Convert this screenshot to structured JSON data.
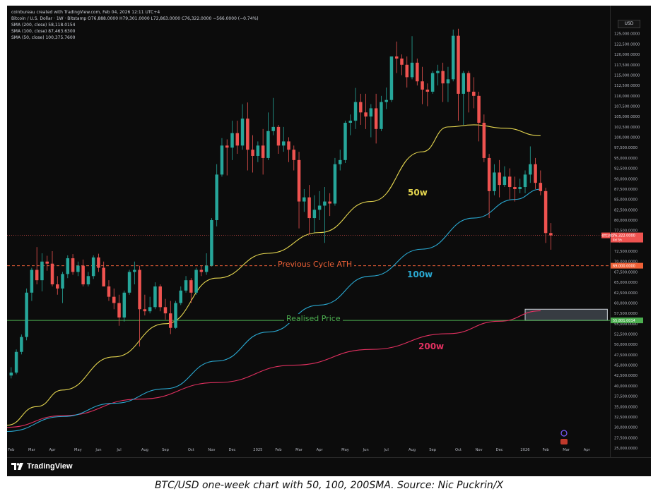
{
  "header": {
    "watermark": "coinbureau created with TradingView.com, Feb 04, 2026 12:11 UTC+4",
    "symbol_line": "Bitcoin / U.S. Dollar · 1W · Bitstamp  O76,888.0000  H79,301.0000  L72,863.0000  C76,322.0000  −566.0000 (−0.74%)",
    "sma200_line": "SMA (200, close)  58,118.0154",
    "sma100_line": "SMA (100, close)  87,463.6300",
    "sma50_line": "SMA (50, close)  100,375.7600"
  },
  "toolbar": {
    "currency": "USD"
  },
  "annotations": {
    "label_50w": "50w",
    "label_100w": "100w",
    "label_200w": "200w",
    "prev_ath_label": "Previous Cycle ATH",
    "realised_label": "Realised Price"
  },
  "branding": {
    "logo_text": "TradingView"
  },
  "caption": "BTC/USD one-week chart with 50, 100, 200SMA. Source: Nic Puckrin/X",
  "colors": {
    "background": "#0c0c0c",
    "up": "#26a69a",
    "down": "#ef5350",
    "sma50": "#e5d64f",
    "sma100": "#2aa9d2",
    "sma200": "#e23060",
    "prev_ath": "#ef6137",
    "realised": "#4caf50",
    "axis_text": "#b2b5be"
  },
  "chart_data": {
    "type": "candlestick",
    "title": "Bitcoin / U.S. Dollar · 1W · Bitstamp",
    "interval": "1W",
    "ylim": [
      25000,
      127000
    ],
    "y_ticks": [
      25000,
      27500,
      30000,
      32500,
      35000,
      37500,
      40000,
      42500,
      45000,
      47500,
      50000,
      52500,
      55000,
      57500,
      60000,
      62500,
      65000,
      67500,
      70000,
      72500,
      75000,
      77500,
      80000,
      82500,
      85000,
      87500,
      90000,
      92500,
      95000,
      97500,
      100000,
      102500,
      105000,
      107500,
      110000,
      112500,
      115000,
      117500,
      120000,
      122500,
      125000
    ],
    "x_ticks": [
      {
        "label": "Feb",
        "week": 0
      },
      {
        "label": "Mar",
        "week": 4
      },
      {
        "label": "Apr",
        "week": 8
      },
      {
        "label": "May",
        "week": 13
      },
      {
        "label": "Jun",
        "week": 17
      },
      {
        "label": "Jul",
        "week": 21
      },
      {
        "label": "Aug",
        "week": 26
      },
      {
        "label": "Sep",
        "week": 30
      },
      {
        "label": "Oct",
        "week": 35
      },
      {
        "label": "Nov",
        "week": 39
      },
      {
        "label": "Dec",
        "week": 43
      },
      {
        "label": "2025",
        "week": 48
      },
      {
        "label": "Feb",
        "week": 52
      },
      {
        "label": "Mar",
        "week": 56
      },
      {
        "label": "Apr",
        "week": 60
      },
      {
        "label": "May",
        "week": 65
      },
      {
        "label": "Jun",
        "week": 69
      },
      {
        "label": "Jul",
        "week": 73
      },
      {
        "label": "Aug",
        "week": 78
      },
      {
        "label": "Sep",
        "week": 82
      },
      {
        "label": "Oct",
        "week": 87
      },
      {
        "label": "Nov",
        "week": 91
      },
      {
        "label": "Dec",
        "week": 95
      },
      {
        "label": "2026",
        "week": 100
      },
      {
        "label": "Feb",
        "week": 104
      },
      {
        "label": "Mar",
        "week": 108
      },
      {
        "label": "Apr",
        "week": 112
      }
    ],
    "week_range": [
      -0.8,
      116.5
    ],
    "candles": [
      [
        42500,
        44500,
        41800,
        43200
      ],
      [
        43200,
        48800,
        42800,
        48200
      ],
      [
        48200,
        52400,
        47600,
        51800
      ],
      [
        51800,
        63500,
        51000,
        62500
      ],
      [
        62500,
        68500,
        60500,
        68000
      ],
      [
        68000,
        73500,
        64500,
        65500
      ],
      [
        65500,
        72000,
        62800,
        70000
      ],
      [
        70000,
        71400,
        67800,
        69500
      ],
      [
        69500,
        72500,
        64000,
        64500
      ],
      [
        64500,
        66500,
        62000,
        63500
      ],
      [
        63500,
        67500,
        60000,
        67000
      ],
      [
        67000,
        71500,
        66000,
        70800
      ],
      [
        70800,
        71800,
        66800,
        67500
      ],
      [
        67500,
        70000,
        66500,
        69000
      ],
      [
        69000,
        70500,
        64000,
        64500
      ],
      [
        64500,
        67500,
        64000,
        66500
      ],
      [
        66500,
        71500,
        65800,
        71000
      ],
      [
        71000,
        71900,
        67500,
        68500
      ],
      [
        68500,
        70000,
        64500,
        64000
      ],
      [
        64000,
        65500,
        60500,
        61500
      ],
      [
        61500,
        63500,
        58500,
        60000
      ],
      [
        60000,
        62000,
        54500,
        56500
      ],
      [
        56500,
        63000,
        55500,
        62500
      ],
      [
        62500,
        68000,
        62000,
        67500
      ],
      [
        67500,
        70000,
        64500,
        68000
      ],
      [
        68000,
        69000,
        49500,
        58500
      ],
      [
        58500,
        62000,
        57000,
        58000
      ],
      [
        58000,
        61500,
        57500,
        59000
      ],
      [
        59000,
        65000,
        58500,
        64000
      ],
      [
        64000,
        64500,
        58000,
        59000
      ],
      [
        59000,
        61000,
        56000,
        57500
      ],
      [
        57500,
        60500,
        52500,
        54000
      ],
      [
        54000,
        60500,
        53800,
        60000
      ],
      [
        60000,
        64000,
        59500,
        63000
      ],
      [
        63000,
        66500,
        62500,
        65500
      ],
      [
        65500,
        66000,
        60000,
        62500
      ],
      [
        62500,
        68500,
        62000,
        68000
      ],
      [
        68000,
        69000,
        66500,
        67500
      ],
      [
        67500,
        72000,
        66800,
        69000
      ],
      [
        69000,
        80500,
        68800,
        80000
      ],
      [
        80000,
        93500,
        78500,
        91000
      ],
      [
        91000,
        99800,
        90500,
        98000
      ],
      [
        98000,
        99500,
        90800,
        97500
      ],
      [
        97500,
        104000,
        94500,
        101000
      ],
      [
        101000,
        104000,
        96000,
        98000
      ],
      [
        98000,
        108000,
        97000,
        104500
      ],
      [
        104500,
        108400,
        92000,
        97000
      ],
      [
        97000,
        100500,
        91500,
        95500
      ],
      [
        95500,
        99000,
        94000,
        98000
      ],
      [
        98000,
        102000,
        91000,
        95000
      ],
      [
        95000,
        106000,
        94500,
        101500
      ],
      [
        101500,
        109500,
        100500,
        102500
      ],
      [
        102500,
        103000,
        96000,
        98000
      ],
      [
        98000,
        102500,
        96500,
        99000
      ],
      [
        99000,
        100000,
        94000,
        97000
      ],
      [
        97000,
        98000,
        92000,
        94500
      ],
      [
        94500,
        96500,
        78000,
        84500
      ],
      [
        84500,
        87500,
        82000,
        85500
      ],
      [
        85500,
        88500,
        76500,
        80500
      ],
      [
        80500,
        86000,
        77000,
        82500
      ],
      [
        82500,
        87000,
        80000,
        83500
      ],
      [
        83500,
        88000,
        74500,
        84500
      ],
      [
        84500,
        86500,
        81000,
        84000
      ],
      [
        84000,
        95000,
        83500,
        93500
      ],
      [
        93500,
        97000,
        92000,
        94500
      ],
      [
        94500,
        104000,
        93800,
        103500
      ],
      [
        103500,
        105500,
        100500,
        104000
      ],
      [
        104000,
        111900,
        102000,
        108500
      ],
      [
        108500,
        110500,
        103000,
        106000
      ],
      [
        106000,
        110500,
        102000,
        105000
      ],
      [
        105000,
        108000,
        100000,
        107000
      ],
      [
        107000,
        110500,
        98500,
        102000
      ],
      [
        102000,
        110000,
        101500,
        108500
      ],
      [
        108500,
        112000,
        106800,
        109000
      ],
      [
        109000,
        119000,
        108500,
        119500
      ],
      [
        119500,
        123100,
        115500,
        119000
      ],
      [
        119000,
        120000,
        115000,
        117500
      ],
      [
        117500,
        119500,
        112000,
        114500
      ],
      [
        114500,
        124400,
        114000,
        118000
      ],
      [
        118000,
        119000,
        112500,
        113500
      ],
      [
        113500,
        117000,
        108000,
        111500
      ],
      [
        111500,
        113000,
        107500,
        111000
      ],
      [
        111000,
        116000,
        110500,
        115500
      ],
      [
        115500,
        117500,
        112500,
        116000
      ],
      [
        116000,
        118000,
        108500,
        113000
      ],
      [
        113000,
        117000,
        108500,
        114000
      ],
      [
        114000,
        126000,
        113500,
        124500
      ],
      [
        124500,
        126200,
        104000,
        110500
      ],
      [
        110500,
        116000,
        103000,
        115500
      ],
      [
        115500,
        116000,
        106000,
        111000
      ],
      [
        111000,
        114500,
        107000,
        110000
      ],
      [
        110000,
        111000,
        99000,
        103500
      ],
      [
        103500,
        105500,
        94000,
        95000
      ],
      [
        95000,
        96000,
        80500,
        87000
      ],
      [
        87000,
        93500,
        86000,
        91500
      ],
      [
        91500,
        94500,
        85500,
        88500
      ],
      [
        88500,
        93000,
        88000,
        90500
      ],
      [
        90500,
        92500,
        85000,
        88000
      ],
      [
        88000,
        90500,
        84500,
        87500
      ],
      [
        87500,
        90000,
        86500,
        88000
      ],
      [
        88000,
        92000,
        86500,
        91000
      ],
      [
        91000,
        97800,
        89000,
        93500
      ],
      [
        93500,
        95000,
        87500,
        89000
      ],
      [
        89000,
        92000,
        86000,
        87000
      ],
      [
        87000,
        87800,
        74500,
        76888
      ],
      [
        76888,
        79301,
        72863,
        76322
      ]
    ],
    "series": [
      {
        "name": "SMA (200, close)",
        "last_value": 58118.0154,
        "points": [
          [
            -0.8,
            30000
          ],
          [
            10,
            32800
          ],
          [
            25,
            36800
          ],
          [
            40,
            40800
          ],
          [
            55,
            45000
          ],
          [
            70,
            48800
          ],
          [
            85,
            52600
          ],
          [
            95,
            55600
          ],
          [
            103,
            58118
          ]
        ]
      },
      {
        "name": "SMA (100, close)",
        "last_value": 87463.63,
        "points": [
          [
            -0.8,
            29000
          ],
          [
            10,
            32600
          ],
          [
            20,
            35800
          ],
          [
            30,
            39300
          ],
          [
            40,
            46000
          ],
          [
            50,
            53000
          ],
          [
            60,
            59500
          ],
          [
            70,
            66500
          ],
          [
            80,
            73000
          ],
          [
            90,
            80500
          ],
          [
            98,
            85000
          ],
          [
            103,
            87463
          ]
        ]
      },
      {
        "name": "SMA (50, close)",
        "last_value": 100375.76,
        "points": [
          [
            -0.8,
            30500
          ],
          [
            5,
            35000
          ],
          [
            10,
            39000
          ],
          [
            20,
            47000
          ],
          [
            30,
            55000
          ],
          [
            40,
            66000
          ],
          [
            50,
            72000
          ],
          [
            60,
            77000
          ],
          [
            70,
            84500
          ],
          [
            80,
            96500
          ],
          [
            85,
            102500
          ],
          [
            90,
            103000
          ],
          [
            96,
            102200
          ],
          [
            103,
            100375
          ]
        ]
      }
    ],
    "hlines": [
      {
        "name": "Previous Cycle ATH",
        "value": 69000,
        "price_label": "69,000.0000",
        "style": "dashed"
      },
      {
        "name": "Realised Price",
        "value": 55801,
        "price_label": "55,801.0014",
        "style": "solid"
      }
    ],
    "current_price": {
      "symbol": "BTCUSD",
      "value": 76322,
      "price_label": "76,322.0000",
      "countdown": "4d 5h"
    },
    "zone": {
      "from_week": 100,
      "to_week": 116,
      "low": 55800,
      "high": 58500
    }
  }
}
